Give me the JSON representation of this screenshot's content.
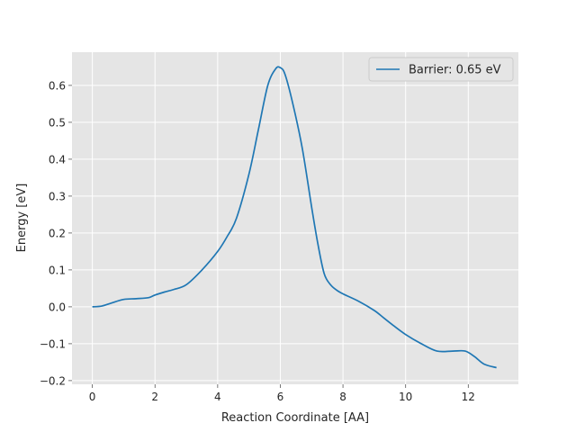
{
  "chart_data": {
    "type": "line",
    "xlabel": "Reaction Coordinate [AA]",
    "ylabel": "Energy [eV]",
    "xlim": [
      -0.65,
      13.6
    ],
    "ylim": [
      -0.21,
      0.69
    ],
    "grid": true,
    "legend_position": "top-right",
    "xticks": [
      0,
      2,
      4,
      6,
      8,
      10,
      12
    ],
    "xtick_labels": [
      "0",
      "2",
      "4",
      "6",
      "8",
      "10",
      "12"
    ],
    "yticks": [
      -0.2,
      -0.1,
      0.0,
      0.1,
      0.2,
      0.3,
      0.4,
      0.5,
      0.6
    ],
    "ytick_labels": [
      "−0.2",
      "−0.1",
      "0.0",
      "0.1",
      "0.2",
      "0.3",
      "0.4",
      "0.5",
      "0.6"
    ],
    "series": [
      {
        "name": "Barrier: 0.65 eV",
        "color": "#1f77b4",
        "x": [
          0.0,
          0.3,
          0.6,
          1.0,
          1.4,
          1.8,
          2.0,
          2.3,
          2.6,
          3.0,
          3.5,
          4.0,
          4.3,
          4.6,
          5.0,
          5.3,
          5.6,
          5.85,
          6.0,
          6.15,
          6.4,
          6.7,
          7.0,
          7.2,
          7.4,
          7.6,
          7.8,
          8.0,
          8.5,
          9.0,
          9.3,
          9.6,
          10.0,
          10.5,
          11.0,
          11.5,
          11.9,
          12.2,
          12.5,
          12.9
        ],
        "y": [
          0.0,
          0.002,
          0.01,
          0.02,
          0.022,
          0.025,
          0.032,
          0.04,
          0.047,
          0.06,
          0.1,
          0.15,
          0.19,
          0.24,
          0.36,
          0.48,
          0.6,
          0.645,
          0.648,
          0.63,
          0.55,
          0.43,
          0.27,
          0.17,
          0.09,
          0.06,
          0.045,
          0.035,
          0.015,
          -0.01,
          -0.03,
          -0.05,
          -0.075,
          -0.1,
          -0.12,
          -0.12,
          -0.12,
          -0.135,
          -0.155,
          -0.165
        ]
      }
    ]
  }
}
